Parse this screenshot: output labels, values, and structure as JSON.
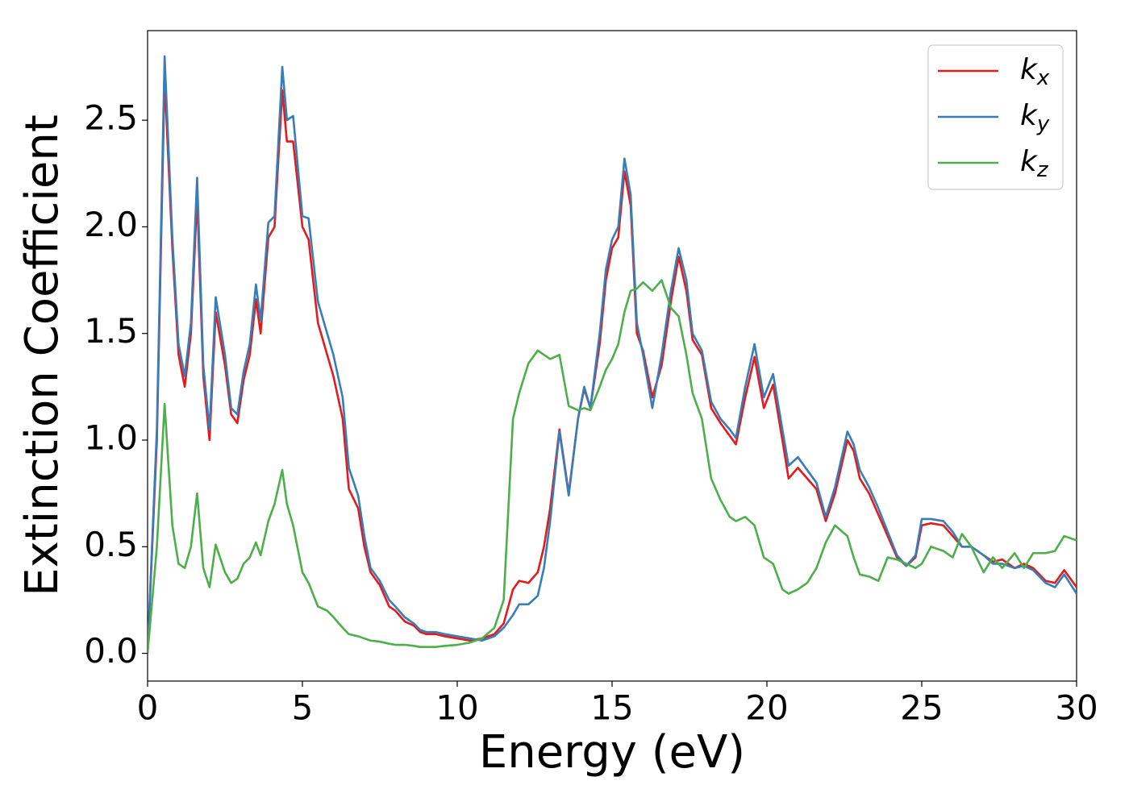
{
  "chart_data": {
    "type": "line",
    "xlabel": "Energy (eV)",
    "ylabel": "Extinction Coefficient",
    "xlim": [
      0,
      30
    ],
    "ylim": [
      -0.13,
      2.92
    ],
    "xticks": [
      0,
      5,
      10,
      15,
      20,
      25,
      30
    ],
    "yticks": [
      {
        "value": 0,
        "label": "0.0"
      },
      0.5,
      {
        "value": 1,
        "label": "1.0"
      },
      1.5,
      {
        "value": 2,
        "label": "2.0"
      },
      2.5
    ],
    "legend": "upper right",
    "x": [
      0,
      0.3,
      0.55,
      0.8,
      1.0,
      1.2,
      1.4,
      1.6,
      1.8,
      2.0,
      2.2,
      2.5,
      2.7,
      2.9,
      3.1,
      3.3,
      3.5,
      3.65,
      3.9,
      4.1,
      4.35,
      4.5,
      4.7,
      5.0,
      5.2,
      5.5,
      5.8,
      6.0,
      6.3,
      6.5,
      6.8,
      7.0,
      7.2,
      7.5,
      7.8,
      8.0,
      8.3,
      8.6,
      8.8,
      9.0,
      9.3,
      9.6,
      10.0,
      10.4,
      10.8,
      11.2,
      11.5,
      11.8,
      12.0,
      12.3,
      12.6,
      12.8,
      13.0,
      13.3,
      13.6,
      13.9,
      14.1,
      14.3,
      14.6,
      14.8,
      15.0,
      15.2,
      15.4,
      15.6,
      15.8,
      16.0,
      16.3,
      16.6,
      16.9,
      17.15,
      17.4,
      17.6,
      17.9,
      18.2,
      18.5,
      18.8,
      19.0,
      19.3,
      19.6,
      19.9,
      20.2,
      20.5,
      20.7,
      21.0,
      21.3,
      21.6,
      21.9,
      22.2,
      22.6,
      22.8,
      23.0,
      23.3,
      23.6,
      23.9,
      24.2,
      24.5,
      24.8,
      25.0,
      25.3,
      25.7,
      26.0,
      26.3,
      26.6,
      27.0,
      27.3,
      27.6,
      28.0,
      28.3,
      28.6,
      29.0,
      29.3,
      29.6,
      30.0
    ],
    "series": [
      {
        "name": "kx",
        "color": "#e41a1c",
        "values": [
          0,
          1.0,
          2.7,
          1.9,
          1.4,
          1.25,
          1.5,
          2.14,
          1.3,
          1.0,
          1.6,
          1.35,
          1.12,
          1.08,
          1.28,
          1.4,
          1.66,
          1.5,
          1.95,
          2.0,
          2.64,
          2.4,
          2.4,
          2.0,
          1.94,
          1.55,
          1.4,
          1.3,
          1.1,
          0.77,
          0.68,
          0.5,
          0.38,
          0.32,
          0.22,
          0.2,
          0.15,
          0.13,
          0.1,
          0.09,
          0.09,
          0.08,
          0.07,
          0.06,
          0.07,
          0.09,
          0.14,
          0.3,
          0.34,
          0.33,
          0.38,
          0.5,
          0.68,
          1.05,
          0.75,
          1.1,
          1.24,
          1.15,
          1.45,
          1.75,
          1.9,
          1.95,
          2.26,
          2.1,
          1.5,
          1.42,
          1.2,
          1.35,
          1.65,
          1.86,
          1.7,
          1.47,
          1.4,
          1.15,
          1.08,
          1.02,
          0.98,
          1.2,
          1.39,
          1.15,
          1.26,
          1.0,
          0.82,
          0.87,
          0.82,
          0.77,
          0.62,
          0.75,
          1.0,
          0.95,
          0.82,
          0.75,
          0.65,
          0.55,
          0.45,
          0.41,
          0.45,
          0.6,
          0.61,
          0.6,
          0.55,
          0.5,
          0.5,
          0.46,
          0.43,
          0.44,
          0.4,
          0.42,
          0.4,
          0.34,
          0.33,
          0.39,
          0.31
        ]
      },
      {
        "name": "ky",
        "color": "#377eb8",
        "values": [
          0,
          1.05,
          2.8,
          1.95,
          1.45,
          1.3,
          1.55,
          2.23,
          1.35,
          1.05,
          1.67,
          1.4,
          1.15,
          1.12,
          1.32,
          1.45,
          1.73,
          1.56,
          2.02,
          2.05,
          2.75,
          2.5,
          2.52,
          2.05,
          2.04,
          1.65,
          1.5,
          1.4,
          1.2,
          0.87,
          0.74,
          0.55,
          0.4,
          0.34,
          0.25,
          0.22,
          0.17,
          0.14,
          0.11,
          0.1,
          0.1,
          0.09,
          0.08,
          0.07,
          0.06,
          0.08,
          0.12,
          0.18,
          0.23,
          0.23,
          0.27,
          0.4,
          0.62,
          1.04,
          0.74,
          1.1,
          1.25,
          1.15,
          1.5,
          1.8,
          1.94,
          2.0,
          2.32,
          2.15,
          1.55,
          1.4,
          1.15,
          1.4,
          1.7,
          1.9,
          1.75,
          1.5,
          1.42,
          1.18,
          1.1,
          1.05,
          1.01,
          1.25,
          1.45,
          1.2,
          1.31,
          1.05,
          0.88,
          0.92,
          0.86,
          0.8,
          0.64,
          0.78,
          1.04,
          0.98,
          0.86,
          0.78,
          0.68,
          0.57,
          0.46,
          0.41,
          0.46,
          0.63,
          0.63,
          0.62,
          0.57,
          0.5,
          0.5,
          0.46,
          0.42,
          0.42,
          0.4,
          0.41,
          0.39,
          0.33,
          0.31,
          0.37,
          0.28
        ]
      },
      {
        "name": "kz",
        "color": "#4daf4a",
        "values": [
          0,
          0.5,
          1.17,
          0.6,
          0.42,
          0.4,
          0.5,
          0.75,
          0.4,
          0.31,
          0.51,
          0.38,
          0.33,
          0.35,
          0.42,
          0.45,
          0.52,
          0.46,
          0.62,
          0.7,
          0.86,
          0.7,
          0.6,
          0.38,
          0.33,
          0.22,
          0.2,
          0.17,
          0.12,
          0.09,
          0.08,
          0.07,
          0.06,
          0.055,
          0.045,
          0.04,
          0.04,
          0.035,
          0.03,
          0.03,
          0.03,
          0.035,
          0.04,
          0.05,
          0.07,
          0.12,
          0.25,
          1.1,
          1.22,
          1.36,
          1.42,
          1.4,
          1.38,
          1.4,
          1.16,
          1.14,
          1.15,
          1.14,
          1.25,
          1.33,
          1.38,
          1.45,
          1.6,
          1.7,
          1.71,
          1.74,
          1.7,
          1.75,
          1.62,
          1.58,
          1.4,
          1.22,
          1.1,
          0.82,
          0.72,
          0.64,
          0.62,
          0.64,
          0.6,
          0.45,
          0.42,
          0.3,
          0.28,
          0.3,
          0.33,
          0.4,
          0.52,
          0.6,
          0.55,
          0.45,
          0.37,
          0.36,
          0.34,
          0.45,
          0.44,
          0.42,
          0.4,
          0.42,
          0.5,
          0.48,
          0.45,
          0.56,
          0.5,
          0.38,
          0.45,
          0.4,
          0.47,
          0.4,
          0.47,
          0.47,
          0.48,
          0.55,
          0.53
        ]
      }
    ]
  }
}
